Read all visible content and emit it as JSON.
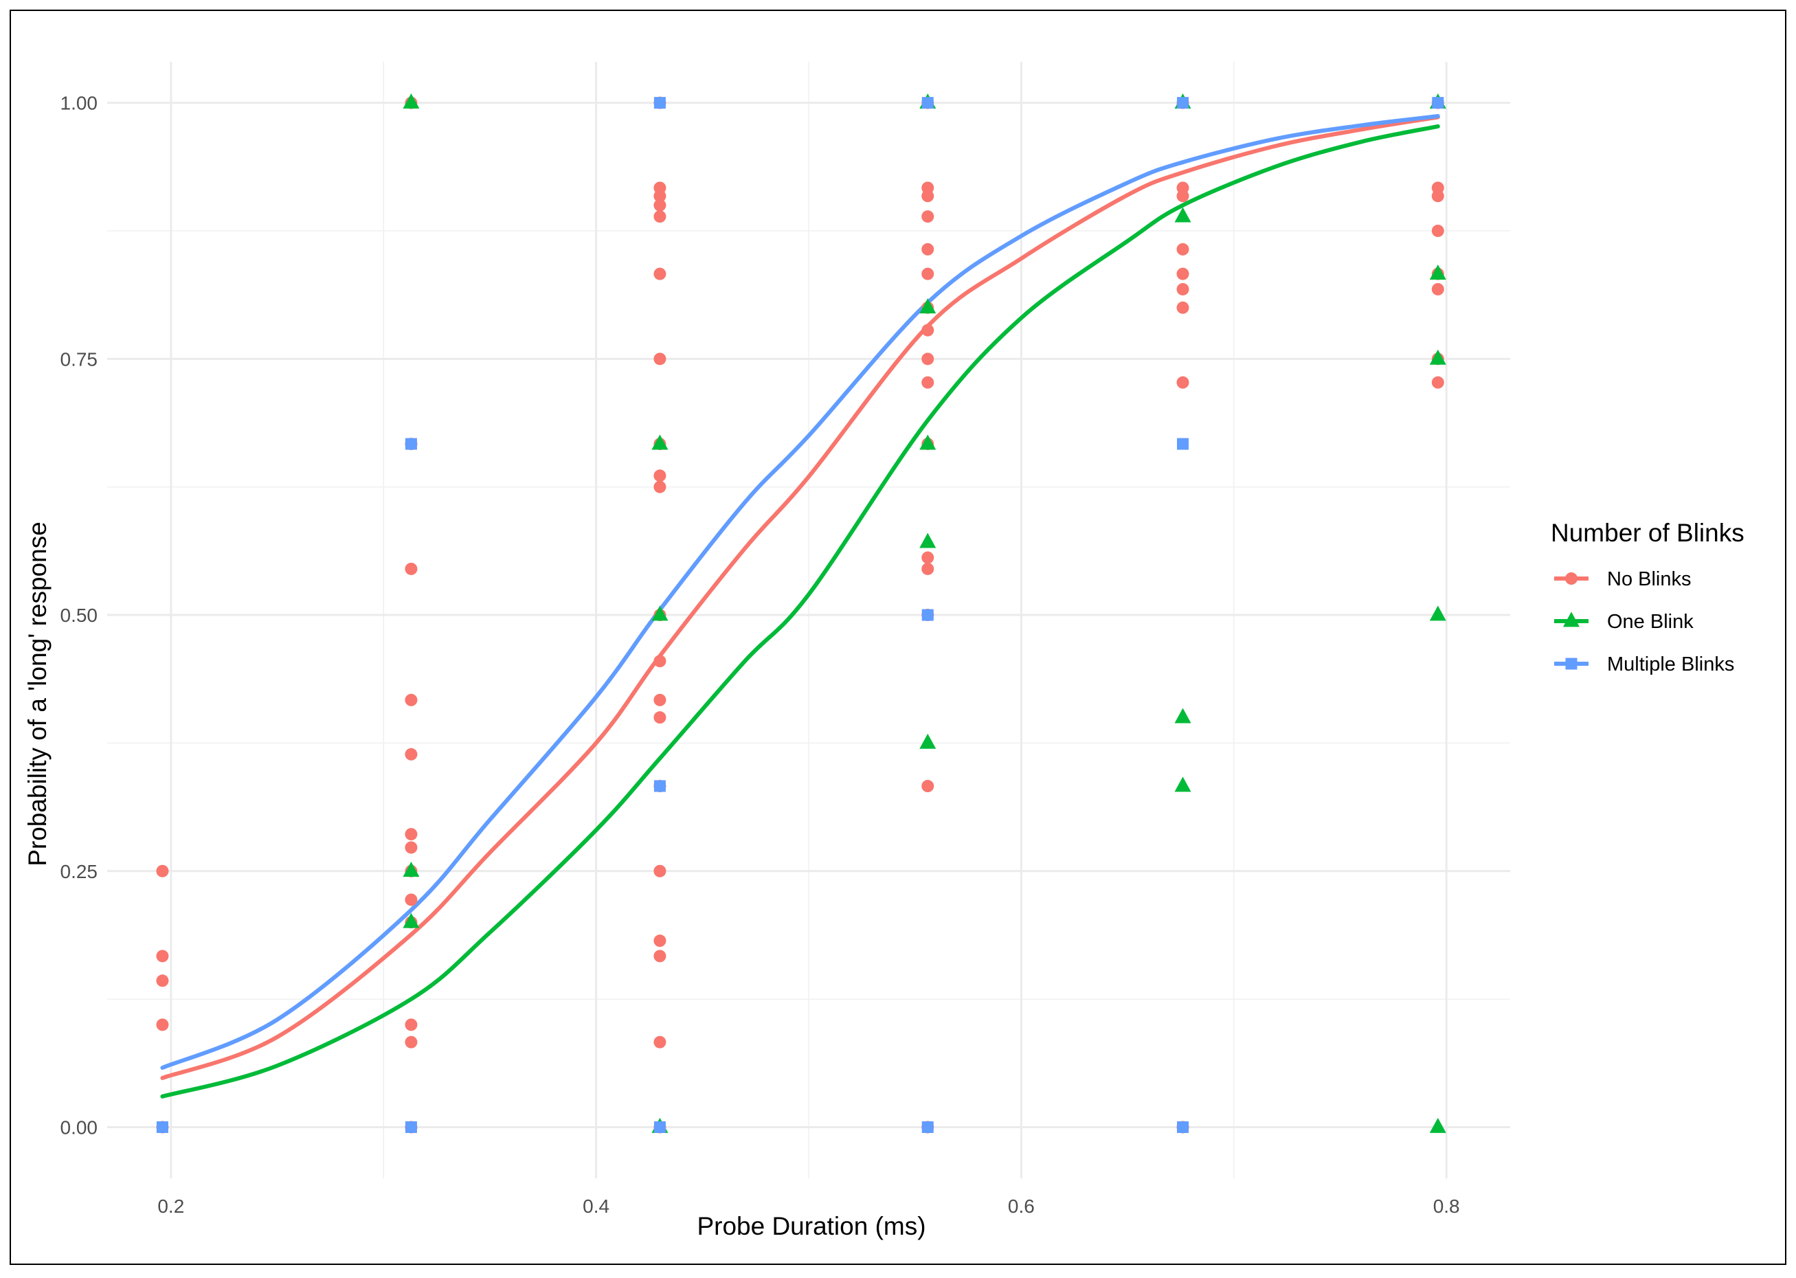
{
  "chart_data": {
    "type": "scatter",
    "title": "",
    "xlabel": "Probe Duration (ms)",
    "ylabel": "Probability of a 'long' response",
    "xlim": [
      0.17,
      0.83
    ],
    "ylim": [
      -0.05,
      1.04
    ],
    "x_ticks": [
      0.2,
      0.4,
      0.6,
      0.8
    ],
    "x_tick_labels": [
      "0.2",
      "0.4",
      "0.6",
      "0.8"
    ],
    "y_ticks": [
      0.0,
      0.25,
      0.5,
      0.75,
      1.0
    ],
    "y_tick_labels": [
      "0.00",
      "0.25",
      "0.50",
      "0.75",
      "1.00"
    ],
    "grid": true,
    "legend": {
      "title": "Number of Blinks",
      "position": "right"
    },
    "series": [
      {
        "name": "No Blinks",
        "color": "#F8766D",
        "marker": "circle",
        "points": [
          [
            0.196,
            0.0
          ],
          [
            0.196,
            0.1
          ],
          [
            0.196,
            0.143
          ],
          [
            0.196,
            0.167
          ],
          [
            0.196,
            0.25
          ],
          [
            0.313,
            0.0
          ],
          [
            0.313,
            0.083
          ],
          [
            0.313,
            0.1
          ],
          [
            0.313,
            0.2
          ],
          [
            0.313,
            0.222
          ],
          [
            0.313,
            0.25
          ],
          [
            0.313,
            0.273
          ],
          [
            0.313,
            0.286
          ],
          [
            0.313,
            0.364
          ],
          [
            0.313,
            0.417
          ],
          [
            0.313,
            0.545
          ],
          [
            0.313,
            0.667
          ],
          [
            0.313,
            1.0
          ],
          [
            0.43,
            0.0
          ],
          [
            0.43,
            0.083
          ],
          [
            0.43,
            0.167
          ],
          [
            0.43,
            0.182
          ],
          [
            0.43,
            0.25
          ],
          [
            0.43,
            0.333
          ],
          [
            0.43,
            0.4
          ],
          [
            0.43,
            0.417
          ],
          [
            0.43,
            0.455
          ],
          [
            0.43,
            0.5
          ],
          [
            0.43,
            0.625
          ],
          [
            0.43,
            0.636
          ],
          [
            0.43,
            0.667
          ],
          [
            0.43,
            0.75
          ],
          [
            0.43,
            0.833
          ],
          [
            0.43,
            0.889
          ],
          [
            0.43,
            0.9
          ],
          [
            0.43,
            0.909
          ],
          [
            0.43,
            0.917
          ],
          [
            0.43,
            1.0
          ],
          [
            0.556,
            0.0
          ],
          [
            0.556,
            0.333
          ],
          [
            0.556,
            0.5
          ],
          [
            0.556,
            0.545
          ],
          [
            0.556,
            0.556
          ],
          [
            0.556,
            0.667
          ],
          [
            0.556,
            0.727
          ],
          [
            0.556,
            0.75
          ],
          [
            0.556,
            0.778
          ],
          [
            0.556,
            0.8
          ],
          [
            0.556,
            0.833
          ],
          [
            0.556,
            0.857
          ],
          [
            0.556,
            0.889
          ],
          [
            0.556,
            0.909
          ],
          [
            0.556,
            0.917
          ],
          [
            0.556,
            1.0
          ],
          [
            0.676,
            0.0
          ],
          [
            0.676,
            0.727
          ],
          [
            0.676,
            0.8
          ],
          [
            0.676,
            0.818
          ],
          [
            0.676,
            0.833
          ],
          [
            0.676,
            0.857
          ],
          [
            0.676,
            0.909
          ],
          [
            0.676,
            0.917
          ],
          [
            0.676,
            1.0
          ],
          [
            0.796,
            0.727
          ],
          [
            0.796,
            0.75
          ],
          [
            0.796,
            0.818
          ],
          [
            0.796,
            0.833
          ],
          [
            0.796,
            0.875
          ],
          [
            0.796,
            0.909
          ],
          [
            0.796,
            0.917
          ],
          [
            0.796,
            1.0
          ]
        ],
        "fit": [
          [
            0.196,
            0.048
          ],
          [
            0.25,
            0.088
          ],
          [
            0.313,
            0.188
          ],
          [
            0.35,
            0.268
          ],
          [
            0.4,
            0.375
          ],
          [
            0.43,
            0.46
          ],
          [
            0.47,
            0.565
          ],
          [
            0.5,
            0.635
          ],
          [
            0.556,
            0.782
          ],
          [
            0.6,
            0.848
          ],
          [
            0.65,
            0.91
          ],
          [
            0.676,
            0.932
          ],
          [
            0.72,
            0.958
          ],
          [
            0.76,
            0.974
          ],
          [
            0.796,
            0.986
          ]
        ]
      },
      {
        "name": "One Blink",
        "color": "#00BA38",
        "marker": "triangle",
        "points": [
          [
            0.313,
            0.2
          ],
          [
            0.313,
            0.25
          ],
          [
            0.313,
            1.0
          ],
          [
            0.43,
            0.0
          ],
          [
            0.43,
            0.5
          ],
          [
            0.43,
            0.667
          ],
          [
            0.556,
            0.375
          ],
          [
            0.556,
            0.571
          ],
          [
            0.556,
            0.667
          ],
          [
            0.556,
            0.8
          ],
          [
            0.556,
            1.0
          ],
          [
            0.676,
            0.333
          ],
          [
            0.676,
            0.4
          ],
          [
            0.676,
            0.889
          ],
          [
            0.676,
            1.0
          ],
          [
            0.796,
            0.0
          ],
          [
            0.796,
            0.5
          ],
          [
            0.796,
            0.75
          ],
          [
            0.796,
            0.833
          ],
          [
            0.796,
            1.0
          ]
        ],
        "fit": [
          [
            0.196,
            0.03
          ],
          [
            0.25,
            0.06
          ],
          [
            0.313,
            0.125
          ],
          [
            0.35,
            0.19
          ],
          [
            0.4,
            0.29
          ],
          [
            0.43,
            0.36
          ],
          [
            0.47,
            0.455
          ],
          [
            0.5,
            0.52
          ],
          [
            0.556,
            0.69
          ],
          [
            0.6,
            0.79
          ],
          [
            0.65,
            0.865
          ],
          [
            0.676,
            0.9
          ],
          [
            0.72,
            0.938
          ],
          [
            0.76,
            0.962
          ],
          [
            0.796,
            0.977
          ]
        ]
      },
      {
        "name": "Multiple Blinks",
        "color": "#619CFF",
        "marker": "square",
        "points": [
          [
            0.196,
            0.0
          ],
          [
            0.313,
            0.0
          ],
          [
            0.313,
            0.667
          ],
          [
            0.43,
            0.0
          ],
          [
            0.43,
            0.333
          ],
          [
            0.43,
            1.0
          ],
          [
            0.556,
            0.0
          ],
          [
            0.556,
            0.5
          ],
          [
            0.556,
            1.0
          ],
          [
            0.676,
            0.0
          ],
          [
            0.676,
            0.667
          ],
          [
            0.676,
            1.0
          ],
          [
            0.796,
            1.0
          ]
        ],
        "fit": [
          [
            0.196,
            0.058
          ],
          [
            0.25,
            0.105
          ],
          [
            0.313,
            0.212
          ],
          [
            0.35,
            0.3
          ],
          [
            0.4,
            0.42
          ],
          [
            0.43,
            0.505
          ],
          [
            0.47,
            0.61
          ],
          [
            0.5,
            0.675
          ],
          [
            0.556,
            0.805
          ],
          [
            0.6,
            0.87
          ],
          [
            0.65,
            0.922
          ],
          [
            0.676,
            0.942
          ],
          [
            0.72,
            0.965
          ],
          [
            0.76,
            0.978
          ],
          [
            0.796,
            0.987
          ]
        ]
      }
    ]
  }
}
